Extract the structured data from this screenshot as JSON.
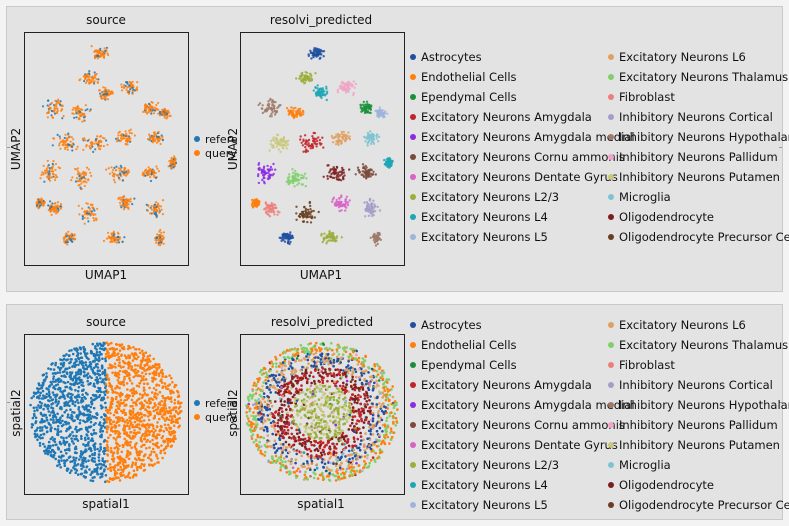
{
  "colors": {
    "reference": "#1f77b4",
    "query": "#ff7f0e",
    "panel_bg": "#e3e3e3",
    "frame": "#222222"
  },
  "source_legend": [
    {
      "label": "reference",
      "color": "#1f77b4"
    },
    {
      "label": "query",
      "color": "#ff7f0e"
    }
  ],
  "cell_types": [
    {
      "label": "Astrocytes",
      "color": "#1f4fa0"
    },
    {
      "label": "Endothelial Cells",
      "color": "#ff7f0e"
    },
    {
      "label": "Ependymal Cells",
      "color": "#1a8f3a"
    },
    {
      "label": "Excitatory Neurons Amygdala",
      "color": "#c3232a"
    },
    {
      "label": "Excitatory Neurons Amygdala medial",
      "color": "#8b2be2"
    },
    {
      "label": "Excitatory Neurons Cornu ammonis",
      "color": "#7a4a3a"
    },
    {
      "label": "Excitatory Neurons Dentate Gyrus",
      "color": "#d862c8"
    },
    {
      "label": "Excitatory Neurons L2/3",
      "color": "#9aaf3a"
    },
    {
      "label": "Excitatory Neurons L4",
      "color": "#1fa6b4"
    },
    {
      "label": "Excitatory Neurons L5",
      "color": "#9fb4dc"
    },
    {
      "label": "Excitatory Neurons L6",
      "color": "#e0a060"
    },
    {
      "label": "Excitatory Neurons Thalamus",
      "color": "#7fd06a"
    },
    {
      "label": "Fibroblast",
      "color": "#ec7f7a"
    },
    {
      "label": "Inhibitory Neurons Cortical",
      "color": "#a59cc8"
    },
    {
      "label": "Inhibitory Neurons Hypothalamus",
      "color": "#9e7a6a"
    },
    {
      "label": "Inhibitory Neurons Pallidum",
      "color": "#f0a4c6"
    },
    {
      "label": "Inhibitory Neurons Putamen",
      "color": "#c8c87a"
    },
    {
      "label": "Microglia",
      "color": "#7ec4d0"
    },
    {
      "label": "Oligodendrocyte",
      "color": "#7a1e1e"
    },
    {
      "label": "Oligodendrocyte Precursor Cells",
      "color": "#6a3e1e"
    }
  ],
  "rows": {
    "umap": {
      "left_title": "source",
      "right_title": "resolvi_predicted",
      "xlabel": "UMAP1",
      "ylabel": "UMAP2"
    },
    "spatial": {
      "left_title": "source",
      "right_title": "resolvi_predicted",
      "xlabel": "spatial1",
      "ylabel": "spatial2"
    }
  },
  "chart_data": [
    {
      "type": "scatter",
      "title": "source",
      "xlabel": "UMAP1",
      "ylabel": "UMAP2",
      "series": [
        {
          "name": "reference"
        },
        {
          "name": "query"
        }
      ],
      "grid": false,
      "legend": "right"
    },
    {
      "type": "scatter",
      "title": "resolvi_predicted",
      "xlabel": "UMAP1",
      "ylabel": "UMAP2",
      "grid": false,
      "legend": "right, two columns"
    },
    {
      "type": "scatter",
      "title": "source",
      "xlabel": "spatial1",
      "ylabel": "spatial2",
      "series": [
        {
          "name": "reference"
        },
        {
          "name": "query"
        }
      ],
      "grid": false,
      "legend": "right"
    },
    {
      "type": "scatter",
      "title": "resolvi_predicted",
      "xlabel": "spatial1",
      "ylabel": "spatial2",
      "grid": false,
      "legend": "right, two columns"
    }
  ]
}
